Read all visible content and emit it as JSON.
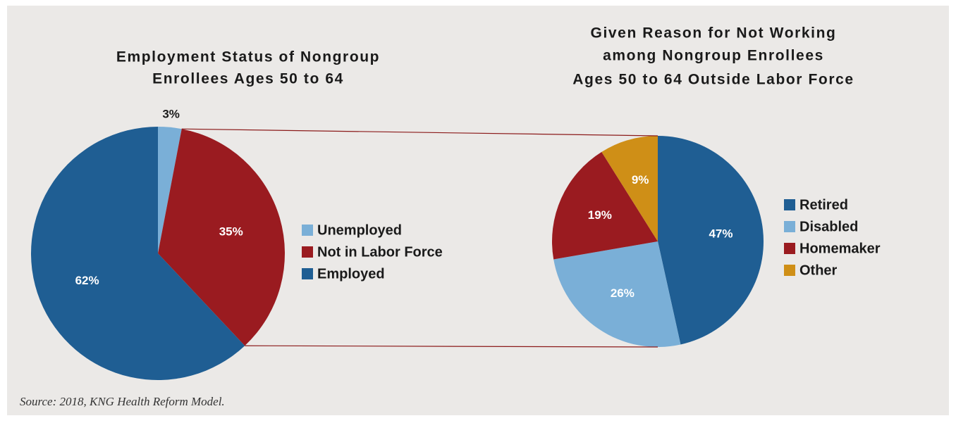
{
  "source": "Source: 2018, KNG Health Reform Model.",
  "chart_data": [
    {
      "type": "pie",
      "title": [
        "Employment Status of Nongroup",
        "Enrollees Ages 50 to 64"
      ],
      "categories": [
        "Unemployed",
        "Not in Labor Force",
        "Employed"
      ],
      "values": [
        3,
        35,
        62
      ],
      "value_labels": [
        "3%",
        "35%",
        "62%"
      ],
      "colors": [
        "#7aafd7",
        "#9a1b20",
        "#1f5e93"
      ]
    },
    {
      "type": "pie",
      "title": [
        "Given Reason for Not Working",
        "among Nongroup Enrollees",
        "Ages 50 to 64 Outside Labor Force"
      ],
      "categories": [
        "Retired",
        "Disabled",
        "Homemaker",
        "Other"
      ],
      "values": [
        47,
        26,
        19,
        9
      ],
      "value_labels": [
        "47%",
        "26%",
        "19%",
        "9%"
      ],
      "colors": [
        "#1f5e93",
        "#7aafd7",
        "#9a1b20",
        "#cf8f17"
      ]
    }
  ]
}
